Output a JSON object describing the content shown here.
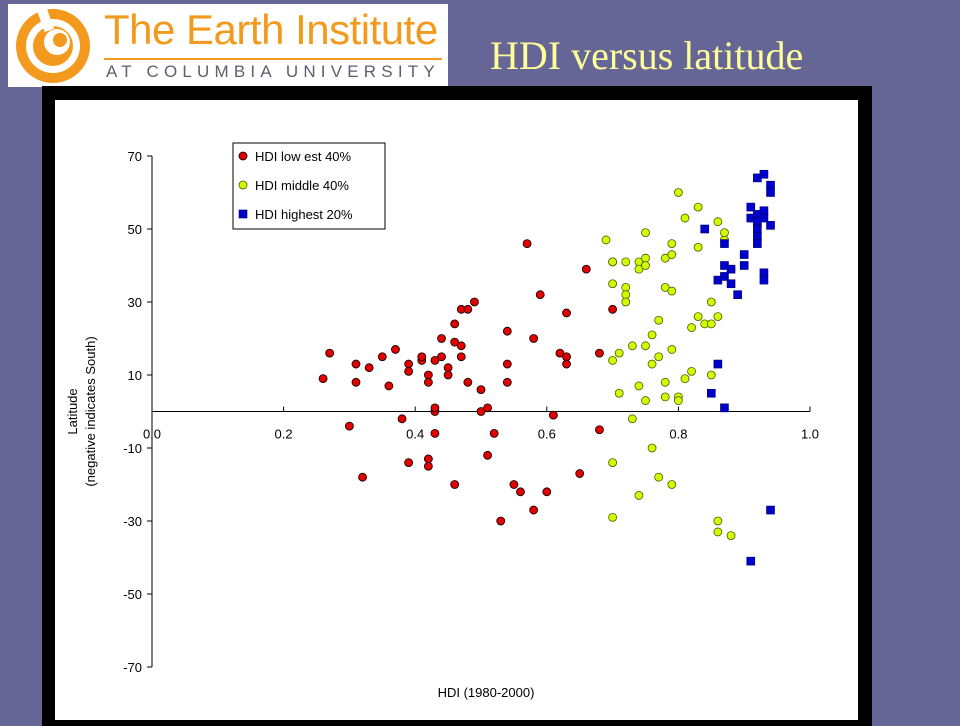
{
  "slide": {
    "title": "HDI versus latitude"
  },
  "logo": {
    "main_text": "The Earth Institute",
    "sub_text": "AT COLUMBIA UNIVERSITY",
    "brand_color": "#f39a1e"
  },
  "colors": {
    "background": "#656596",
    "title": "#ffff99",
    "low": "#e00000",
    "middle": "#ccff00",
    "highest": "#0000cc"
  },
  "chart_data": {
    "type": "scatter",
    "xlabel": "HDI (1980-2000)",
    "ylabel_line1": "Latitude",
    "ylabel_line2": "(negative indicates South)",
    "xlim": [
      0.0,
      1.0
    ],
    "ylim": [
      -70,
      70
    ],
    "xticks": [
      "0.0",
      "0.2",
      "0.4",
      "0.6",
      "0.8",
      "1.0"
    ],
    "yticks": [
      "70",
      "50",
      "30",
      "10",
      "-10",
      "-30",
      "-50",
      "-70"
    ],
    "grid": false,
    "legend_position": "top-left",
    "series": [
      {
        "name": "HDI low est 40%",
        "marker": "circle",
        "points": [
          [
            0.26,
            9
          ],
          [
            0.27,
            16
          ],
          [
            0.3,
            -4
          ],
          [
            0.31,
            13
          ],
          [
            0.31,
            8
          ],
          [
            0.32,
            -18
          ],
          [
            0.33,
            12
          ],
          [
            0.35,
            15
          ],
          [
            0.36,
            7
          ],
          [
            0.37,
            17
          ],
          [
            0.38,
            -2
          ],
          [
            0.39,
            13
          ],
          [
            0.39,
            11
          ],
          [
            0.39,
            -14
          ],
          [
            0.41,
            14
          ],
          [
            0.41,
            15
          ],
          [
            0.42,
            10
          ],
          [
            0.42,
            8
          ],
          [
            0.42,
            -13
          ],
          [
            0.42,
            -15
          ],
          [
            0.43,
            14
          ],
          [
            0.43,
            0
          ],
          [
            0.43,
            1
          ],
          [
            0.43,
            -6
          ],
          [
            0.44,
            20
          ],
          [
            0.44,
            15
          ],
          [
            0.45,
            12
          ],
          [
            0.45,
            10
          ],
          [
            0.46,
            -20
          ],
          [
            0.46,
            24
          ],
          [
            0.46,
            19
          ],
          [
            0.47,
            18
          ],
          [
            0.47,
            15
          ],
          [
            0.47,
            28
          ],
          [
            0.48,
            28
          ],
          [
            0.48,
            8
          ],
          [
            0.49,
            30
          ],
          [
            0.5,
            0
          ],
          [
            0.5,
            6
          ],
          [
            0.51,
            -12
          ],
          [
            0.51,
            1
          ],
          [
            0.52,
            -6
          ],
          [
            0.53,
            -30
          ],
          [
            0.54,
            13
          ],
          [
            0.54,
            8
          ],
          [
            0.54,
            22
          ],
          [
            0.55,
            -20
          ],
          [
            0.56,
            -22
          ],
          [
            0.57,
            46
          ],
          [
            0.58,
            -27
          ],
          [
            0.58,
            20
          ],
          [
            0.59,
            32
          ],
          [
            0.6,
            -22
          ],
          [
            0.61,
            -1
          ],
          [
            0.62,
            16
          ],
          [
            0.63,
            15
          ],
          [
            0.63,
            13
          ],
          [
            0.63,
            27
          ],
          [
            0.65,
            -17
          ],
          [
            0.66,
            39
          ],
          [
            0.68,
            -5
          ],
          [
            0.68,
            16
          ],
          [
            0.7,
            28
          ],
          [
            0.7,
            41
          ]
        ]
      },
      {
        "name": "HDI middle 40%",
        "marker": "circle",
        "points": [
          [
            0.69,
            47
          ],
          [
            0.7,
            41
          ],
          [
            0.7,
            35
          ],
          [
            0.7,
            14
          ],
          [
            0.7,
            -14
          ],
          [
            0.7,
            -29
          ],
          [
            0.71,
            5
          ],
          [
            0.71,
            16
          ],
          [
            0.72,
            34
          ],
          [
            0.72,
            32
          ],
          [
            0.72,
            30
          ],
          [
            0.72,
            41
          ],
          [
            0.73,
            18
          ],
          [
            0.73,
            -2
          ],
          [
            0.74,
            41
          ],
          [
            0.74,
            39
          ],
          [
            0.74,
            7
          ],
          [
            0.74,
            -23
          ],
          [
            0.75,
            49
          ],
          [
            0.75,
            42
          ],
          [
            0.75,
            40
          ],
          [
            0.75,
            18
          ],
          [
            0.75,
            3
          ],
          [
            0.76,
            -10
          ],
          [
            0.76,
            21
          ],
          [
            0.76,
            13
          ],
          [
            0.77,
            25
          ],
          [
            0.77,
            15
          ],
          [
            0.77,
            -18
          ],
          [
            0.78,
            34
          ],
          [
            0.78,
            42
          ],
          [
            0.78,
            4
          ],
          [
            0.78,
            8
          ],
          [
            0.79,
            43
          ],
          [
            0.79,
            46
          ],
          [
            0.79,
            33
          ],
          [
            0.79,
            17
          ],
          [
            0.79,
            -20
          ],
          [
            0.8,
            60
          ],
          [
            0.8,
            4
          ],
          [
            0.8,
            3
          ],
          [
            0.81,
            53
          ],
          [
            0.81,
            9
          ],
          [
            0.82,
            23
          ],
          [
            0.82,
            11
          ],
          [
            0.83,
            56
          ],
          [
            0.83,
            45
          ],
          [
            0.83,
            26
          ],
          [
            0.84,
            24
          ],
          [
            0.85,
            24
          ],
          [
            0.85,
            30
          ],
          [
            0.85,
            10
          ],
          [
            0.86,
            26
          ],
          [
            0.86,
            52
          ],
          [
            0.87,
            47
          ],
          [
            0.87,
            49
          ],
          [
            0.86,
            -30
          ],
          [
            0.86,
            -33
          ],
          [
            0.88,
            -34
          ]
        ]
      },
      {
        "name": "HDI highest 20%",
        "marker": "square",
        "points": [
          [
            0.84,
            50
          ],
          [
            0.85,
            5
          ],
          [
            0.86,
            36
          ],
          [
            0.86,
            13
          ],
          [
            0.87,
            46
          ],
          [
            0.87,
            40
          ],
          [
            0.87,
            37
          ],
          [
            0.87,
            1
          ],
          [
            0.88,
            39
          ],
          [
            0.88,
            35
          ],
          [
            0.89,
            32
          ],
          [
            0.9,
            40
          ],
          [
            0.9,
            43
          ],
          [
            0.91,
            53
          ],
          [
            0.91,
            56
          ],
          [
            0.91,
            -41
          ],
          [
            0.92,
            64
          ],
          [
            0.92,
            54
          ],
          [
            0.92,
            52
          ],
          [
            0.92,
            50
          ],
          [
            0.92,
            48
          ],
          [
            0.92,
            46
          ],
          [
            0.93,
            65
          ],
          [
            0.93,
            55
          ],
          [
            0.93,
            53
          ],
          [
            0.93,
            38
          ],
          [
            0.93,
            36
          ],
          [
            0.94,
            62
          ],
          [
            0.94,
            60
          ],
          [
            0.94,
            51
          ],
          [
            0.94,
            -27
          ]
        ]
      }
    ]
  }
}
